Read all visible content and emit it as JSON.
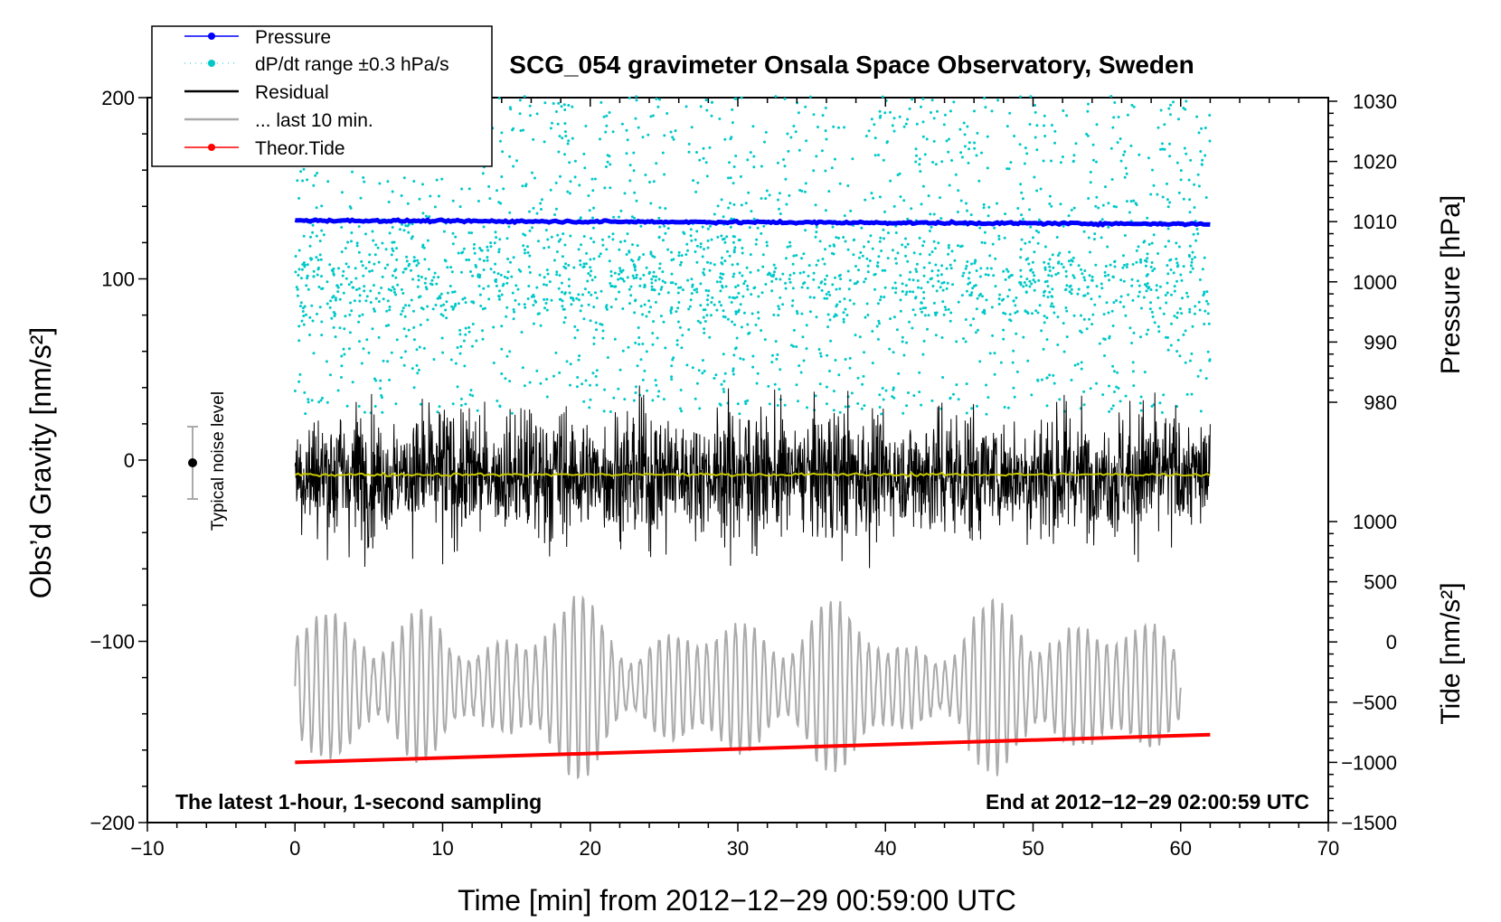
{
  "chart_data": {
    "type": "line",
    "title": "SCG_054 gravimeter Onsala Space Observatory, Sweden",
    "xlabel": "Time [min] from 2012−12−29 00:59:00 UTC",
    "ylabel_left": "Obs’d Gravity [nm/s²]",
    "ylabel_pressure": "Pressure [hPa]",
    "ylabel_tide": "Tide [nm/s²]",
    "xlim": [
      -10,
      70
    ],
    "ylim": [
      -200,
      200
    ],
    "pressure_lim": [
      980,
      1030
    ],
    "tide_lim": [
      -1500,
      1000
    ],
    "x_ticks": [
      "−10",
      "0",
      "10",
      "20",
      "30",
      "40",
      "50",
      "60",
      "70"
    ],
    "y_ticks": [
      "200",
      "100",
      "0",
      "−100",
      "−200"
    ],
    "pressure_ticks": [
      "1030",
      "1020",
      "1010",
      "1000",
      "990",
      "980"
    ],
    "tide_ticks": [
      "1000",
      "500",
      "0",
      "−500",
      "−1000",
      "−1500"
    ],
    "left_note": "The latest 1-hour, 1-second sampling",
    "right_note": "End at 2012−12−29 02:00:59 UTC",
    "noise_label": "Typical noise level",
    "noise_level": {
      "x": -7,
      "center": 0,
      "half_range": 20
    },
    "legend": [
      {
        "label": "Pressure",
        "color": "#0000ff",
        "style": "line-dot"
      },
      {
        "label": "dP/dt range ±0.3 hPa/s",
        "color": "#00c8c8",
        "style": "dot"
      },
      {
        "label": "Residual",
        "color": "#000000",
        "style": "line"
      },
      {
        "label": "... last 10 min.",
        "color": "#aaaaaa",
        "style": "line"
      },
      {
        "label": "Theor.Tide",
        "color": "#ff0000",
        "style": "line-dot"
      }
    ],
    "series": [
      {
        "name": "Pressure",
        "axis": "pressure",
        "color": "#0000ff",
        "x": [
          0,
          62
        ],
        "values": [
          1010.0,
          1010.0
        ],
        "note": "approx. constant ~1010 hPa"
      },
      {
        "name": "dP/dt range ±0.3 hPa/s",
        "axis": "pressure",
        "color": "#00c8c8",
        "x_range": [
          0,
          62
        ],
        "value_range": [
          978,
          1031
        ],
        "note": "scatter of points"
      },
      {
        "name": "Residual",
        "axis": "gravity",
        "color": "#000000",
        "x_range": [
          0,
          62
        ],
        "mean": -8,
        "amplitude_range": [
          -80,
          62
        ],
        "note": "high-frequency noise"
      },
      {
        "name": "Residual smoothed",
        "axis": "gravity",
        "color": "#c8c800",
        "x": [
          0,
          62
        ],
        "values": [
          -8,
          -8
        ]
      },
      {
        "name": "... last 10 min.",
        "axis": "gravity",
        "color": "#aaaaaa",
        "x_range": [
          0,
          60
        ],
        "mean": -125,
        "amplitude_range": [
          -188,
          -68
        ],
        "note": "oscillating trace"
      },
      {
        "name": "Theor.Tide",
        "axis": "tide",
        "color": "#ff0000",
        "x": [
          0,
          62
        ],
        "values": [
          -1000,
          -770
        ]
      }
    ]
  }
}
